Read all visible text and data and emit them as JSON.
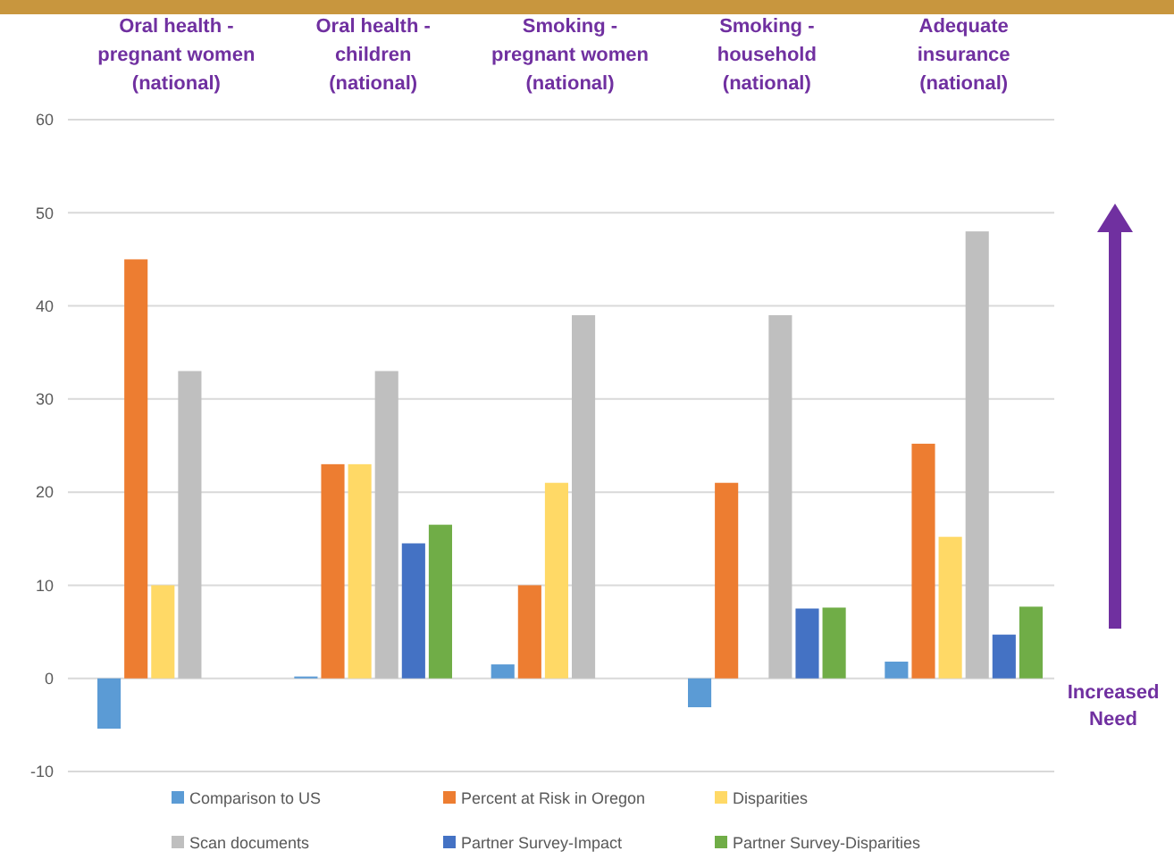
{
  "chart_data": {
    "type": "bar",
    "categories": [
      "Oral health - pregnant women (national)",
      "Oral health - children (national)",
      "Smoking - pregnant women (national)",
      "Smoking - household (national)",
      "Adequate insurance (national)"
    ],
    "series": [
      {
        "name": "Comparison to US",
        "color": "#5b9bd5",
        "values": [
          -5.4,
          0.2,
          1.5,
          -3.1,
          1.8
        ]
      },
      {
        "name": "Percent at Risk in Oregon",
        "color": "#ed7d31",
        "values": [
          45,
          23,
          10,
          21,
          25.2
        ]
      },
      {
        "name": "Disparities",
        "color": "#ffd966",
        "values": [
          10,
          23,
          21,
          null,
          15.2
        ]
      },
      {
        "name": "Scan documents",
        "color": "#bfbfbf",
        "values": [
          33,
          33,
          39,
          39,
          48
        ]
      },
      {
        "name": "Partner Survey-Impact",
        "color": "#4472c4",
        "values": [
          null,
          14.5,
          null,
          7.5,
          4.7
        ]
      },
      {
        "name": "Partner Survey-Disparities",
        "color": "#70ad47",
        "values": [
          null,
          16.5,
          null,
          7.6,
          7.7
        ]
      }
    ],
    "ylim": [
      -10,
      60
    ],
    "yticks": [
      -10,
      0,
      10,
      20,
      30,
      40,
      50,
      60
    ],
    "grid": "y",
    "legend": "bottom",
    "annotations": [
      "Increased Need"
    ]
  }
}
